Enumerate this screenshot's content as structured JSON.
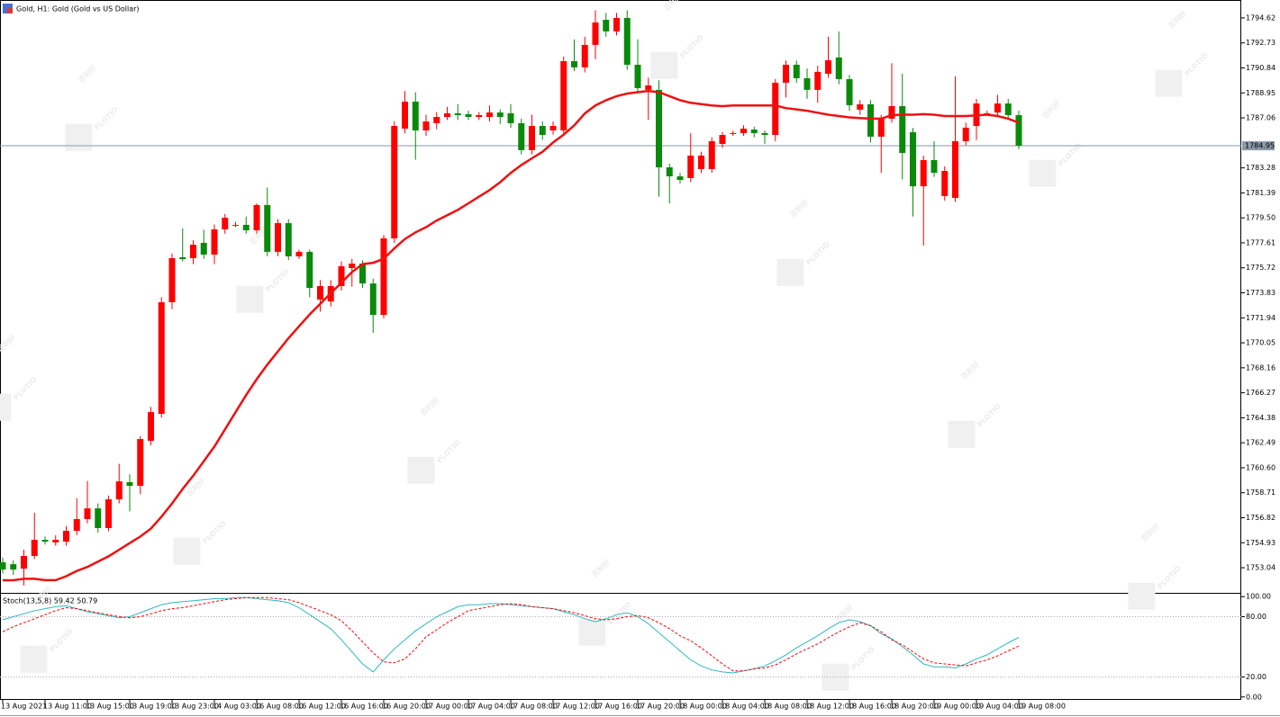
{
  "chart_data": [
    {
      "type": "candlestick",
      "title": "Gold, H1:  Gold (Gold vs US Dollar)",
      "watermark": {
        "brand": "PLOTIO",
        "text": "百利好"
      },
      "categories": [
        "13 Aug 2021",
        null,
        null,
        null,
        "13 Aug 11:00",
        null,
        null,
        null,
        "13 Aug 15:00",
        null,
        null,
        null,
        "13 Aug 19:00",
        null,
        null,
        null,
        "13 Aug 23:00",
        null,
        null,
        null,
        "14 Aug 03:00",
        null,
        null,
        null,
        "16 Aug 08:00",
        null,
        null,
        null,
        "16 Aug 12:00",
        null,
        null,
        null,
        "16 Aug 16:00",
        null,
        null,
        null,
        "16 Aug 20:00",
        null,
        null,
        null,
        "17 Aug 00:00",
        null,
        null,
        null,
        "17 Aug 04:00",
        null,
        null,
        null,
        "17 Aug 08:00",
        null,
        null,
        null,
        "17 Aug 12:00",
        null,
        null,
        null,
        "17 Aug 16:00",
        null,
        null,
        null,
        "17 Aug 20:00",
        null,
        null,
        null,
        "18 Aug 00:00",
        null,
        null,
        null,
        "18 Aug 04:00",
        null,
        null,
        null,
        "18 Aug 08:00",
        null,
        null,
        null,
        "18 Aug 12:00",
        null,
        null,
        null,
        "18 Aug 16:00",
        null,
        null,
        null,
        "18 Aug 20:00",
        null,
        null,
        null,
        "19 Aug 00:00",
        null,
        null,
        null,
        "19 Aug 04:00",
        null,
        null,
        null,
        "19 Aug 08:00"
      ],
      "open": [
        1753.45,
        1753.31,
        1752.97,
        1753.93,
        1755.15,
        1754.95,
        1755.01,
        1755.83,
        1756.72,
        1757.53,
        1756.04,
        1758.21,
        1759.51,
        1759.23,
        1762.64,
        1764.68,
        1773.12,
        1776.52,
        1776.45,
        1777.61,
        1776.72,
        1778.63,
        1778.97,
        1778.97,
        1778.56,
        1780.47,
        1776.93,
        1779.1,
        1776.59,
        1776.93,
        1773.32,
        1773.18,
        1774.34,
        1775.7,
        1776.04,
        1774.54,
        1772.16,
        1777.95,
        1786.25,
        1788.29,
        1786.11,
        1786.66,
        1787.13,
        1787.41,
        1787.34,
        1787.13,
        1787.13,
        1787.47,
        1787.41,
        1786.66,
        1784.62,
        1786.45,
        1786.11,
        1786.11,
        1791.35,
        1790.88,
        1792.58,
        1794.48,
        1793.6,
        1794.62,
        1791.08,
        1789.18,
        1789.18,
        1783.32,
        1782.64,
        1782.51,
        1783.19,
        1783.19,
        1785.09,
        1785.91,
        1785.91,
        1786.18,
        1785.91,
        1785.77,
        1789.72,
        1791.08,
        1790.06,
        1789.18,
        1790.4,
        1791.63,
        1789.99,
        1787.68,
        1788.09,
        1785.64,
        1787.0,
        1787.95,
        1785.98,
        1781.89,
        1783.87,
        1781.15,
        1781.01,
        1785.3,
        1786.45,
        1787.41,
        1787.47,
        1788.15,
        1787.27
      ],
      "high": [
        1753.8,
        1753.6,
        1754.4,
        1757.2,
        1755.4,
        1755.5,
        1756.2,
        1758.3,
        1759.6,
        1757.9,
        1758.5,
        1760.9,
        1760.1,
        1763.0,
        1765.2,
        1773.5,
        1776.8,
        1778.7,
        1777.8,
        1778.6,
        1779.0,
        1779.8,
        1779.2,
        1779.6,
        1780.6,
        1781.8,
        1779.4,
        1779.4,
        1777.1,
        1777.1,
        1774.8,
        1774.8,
        1776.2,
        1776.4,
        1776.3,
        1774.9,
        1778.2,
        1786.8,
        1789.1,
        1789.0,
        1787.3,
        1787.5,
        1787.9,
        1788.1,
        1787.6,
        1787.5,
        1788.0,
        1787.7,
        1788.1,
        1787.0,
        1787.3,
        1786.8,
        1786.8,
        1791.7,
        1793.0,
        1793.2,
        1795.2,
        1795.0,
        1795.0,
        1795.2,
        1793.0,
        1790.1,
        1789.9,
        1783.6,
        1782.9,
        1785.9,
        1784.5,
        1785.6,
        1786.0,
        1786.1,
        1786.5,
        1786.4,
        1786.1,
        1790.0,
        1791.4,
        1791.4,
        1790.8,
        1791.0,
        1793.2,
        1793.6,
        1790.3,
        1788.4,
        1788.4,
        1787.3,
        1791.2,
        1790.4,
        1786.3,
        1784.2,
        1785.3,
        1783.4,
        1790.2,
        1786.7,
        1788.5,
        1787.6,
        1788.8,
        1788.5,
        1787.6
      ],
      "low": [
        1752.6,
        1752.5,
        1751.7,
        1753.7,
        1754.8,
        1754.7,
        1754.7,
        1755.5,
        1756.4,
        1755.7,
        1755.8,
        1757.9,
        1757.3,
        1758.6,
        1762.3,
        1764.4,
        1772.6,
        1776.2,
        1776.0,
        1776.4,
        1776.0,
        1778.3,
        1778.8,
        1778.3,
        1778.3,
        1776.6,
        1776.6,
        1776.3,
        1776.4,
        1773.5,
        1772.4,
        1772.8,
        1774.0,
        1774.3,
        1774.2,
        1770.8,
        1771.9,
        1777.6,
        1785.9,
        1783.9,
        1785.7,
        1786.2,
        1786.9,
        1786.9,
        1786.9,
        1786.9,
        1786.8,
        1786.6,
        1786.3,
        1784.3,
        1784.3,
        1785.4,
        1785.8,
        1785.8,
        1790.6,
        1790.5,
        1791.5,
        1793.2,
        1793.3,
        1790.7,
        1789.0,
        1786.9,
        1781.1,
        1780.6,
        1782.1,
        1782.2,
        1782.9,
        1782.9,
        1784.8,
        1785.7,
        1785.7,
        1785.6,
        1785.1,
        1785.3,
        1788.6,
        1789.7,
        1788.5,
        1788.2,
        1790.1,
        1789.6,
        1787.6,
        1787.3,
        1785.2,
        1782.9,
        1786.7,
        1782.4,
        1779.6,
        1777.4,
        1782.6,
        1780.8,
        1780.7,
        1785.0,
        1785.4,
        1787.2,
        1787.2,
        1787.0,
        1784.7
      ],
      "close": [
        1752.9,
        1752.9,
        1753.93,
        1755.15,
        1755.01,
        1755.15,
        1755.83,
        1756.72,
        1757.53,
        1756.04,
        1758.21,
        1759.57,
        1759.23,
        1762.77,
        1764.81,
        1773.12,
        1776.45,
        1776.38,
        1777.47,
        1776.72,
        1778.63,
        1779.51,
        1778.97,
        1778.56,
        1780.47,
        1776.93,
        1779.1,
        1776.59,
        1776.93,
        1774.2,
        1774.34,
        1774.34,
        1775.84,
        1776.04,
        1774.54,
        1772.16,
        1777.95,
        1786.45,
        1788.29,
        1786.11,
        1786.79,
        1787.13,
        1787.41,
        1787.27,
        1787.13,
        1787.27,
        1787.47,
        1787.13,
        1786.66,
        1784.62,
        1786.45,
        1785.77,
        1786.45,
        1791.35,
        1790.88,
        1792.58,
        1794.28,
        1793.6,
        1794.62,
        1791.08,
        1789.31,
        1789.52,
        1783.32,
        1782.64,
        1782.37,
        1784.21,
        1784.21,
        1785.3,
        1785.77,
        1785.91,
        1786.25,
        1785.91,
        1785.77,
        1789.72,
        1791.08,
        1790.06,
        1789.18,
        1790.54,
        1791.42,
        1789.99,
        1788.02,
        1788.09,
        1785.64,
        1787.0,
        1787.95,
        1784.41,
        1781.89,
        1783.87,
        1782.91,
        1783.05,
        1785.3,
        1786.32,
        1788.15,
        1787.41,
        1788.15,
        1787.27,
        1784.96
      ],
      "up_color": "#ff0000",
      "down_color": "#0a8a0a",
      "moving_average": {
        "color": "#ee1111",
        "values": [
          1752.09,
          1752.09,
          1752.2,
          1752.2,
          1752.1,
          1752.1,
          1752.4,
          1752.8,
          1753.1,
          1753.5,
          1753.9,
          1754.4,
          1754.9,
          1755.4,
          1756.0,
          1756.9,
          1757.9,
          1759.0,
          1760.0,
          1761.1,
          1762.2,
          1763.5,
          1764.8,
          1766.1,
          1767.3,
          1768.4,
          1769.4,
          1770.4,
          1771.3,
          1772.2,
          1773.0,
          1773.8,
          1774.6,
          1775.4,
          1776.0,
          1776.1,
          1776.4,
          1777.2,
          1777.9,
          1778.4,
          1778.8,
          1779.3,
          1779.7,
          1780.1,
          1780.6,
          1781.1,
          1781.6,
          1782.2,
          1782.9,
          1783.5,
          1784.0,
          1784.5,
          1785.2,
          1785.8,
          1786.5,
          1787.4,
          1788.0,
          1788.4,
          1788.7,
          1788.9,
          1789.0,
          1789.1,
          1789.0,
          1788.7,
          1788.4,
          1788.2,
          1788.1,
          1788.0,
          1787.95,
          1788.0,
          1788.0,
          1788.0,
          1788.0,
          1788.0,
          1787.8,
          1787.7,
          1787.6,
          1787.45,
          1787.3,
          1787.2,
          1787.1,
          1787.05,
          1787.0,
          1787.0,
          1787.27,
          1787.3,
          1787.3,
          1787.34,
          1787.3,
          1787.2,
          1787.2,
          1787.2,
          1787.25,
          1787.3,
          1787.2,
          1787.0,
          1786.7
        ]
      },
      "current_price": 1784.95,
      "ylim": [
        1751.14,
        1795.84
      ],
      "yticks": [
        1794.62,
        1792.73,
        1790.84,
        1788.95,
        1787.06,
        1783.28,
        1781.39,
        {
          "value": 1779.5,
          "label": "1779.50"
        },
        1777.61,
        1775.72,
        1773.83,
        1771.94,
        1770.05,
        1768.16,
        1766.27,
        1764.38,
        1762.49,
        {
          "value": 1760.6,
          "label": "1760.60"
        },
        1758.71,
        1756.82,
        1754.93,
        1753.04
      ]
    },
    {
      "type": "line",
      "title": "Stoch(13,5,8) 59.42 50.79",
      "series": [
        {
          "color": "#2fb8c0",
          "values": [
            77,
            80,
            83,
            86,
            88,
            90,
            91,
            88,
            85,
            83,
            81,
            79,
            80,
            84,
            88,
            92,
            94,
            95,
            96,
            97,
            98,
            98,
            99,
            99,
            98,
            97,
            96,
            94,
            89,
            82,
            75,
            68,
            57,
            45,
            33,
            25,
            37,
            48,
            57,
            66,
            73,
            80,
            85,
            90,
            92,
            92,
            93,
            93,
            92,
            91,
            90,
            89,
            88,
            85,
            82,
            78,
            75,
            78,
            82,
            84,
            80,
            73,
            64,
            55,
            46,
            37,
            31,
            27,
            25,
            24,
            26,
            28,
            31,
            36,
            42,
            49,
            55,
            61,
            68,
            74,
            77,
            75,
            71,
            63,
            58,
            50,
            42,
            33,
            30,
            30,
            29,
            33,
            38,
            42,
            48,
            54,
            59.42
          ]
        },
        {
          "color": "#ff0000",
          "dash": true,
          "values": [
            65,
            70,
            74,
            78,
            82,
            86,
            89,
            88,
            86,
            84,
            82,
            80,
            79,
            80,
            83,
            86,
            88,
            89,
            91,
            93,
            95,
            97,
            98,
            99,
            99,
            99,
            98,
            97,
            94,
            90,
            86,
            82,
            76,
            66,
            55,
            44,
            35,
            34,
            38,
            48,
            60,
            67,
            74,
            80,
            86,
            88,
            90,
            92,
            93,
            92,
            90,
            89,
            88,
            86,
            84,
            81,
            78,
            77,
            78,
            80,
            81,
            79,
            74,
            68,
            61,
            56,
            49,
            41,
            33,
            26,
            26,
            28,
            29,
            32,
            37,
            43,
            48,
            53,
            59,
            65,
            70,
            74,
            71,
            65,
            57,
            52,
            45,
            38,
            34,
            33,
            32,
            31,
            34,
            37,
            41,
            46,
            50.79
          ]
        }
      ],
      "ylim": [
        -2,
        102
      ],
      "yticks": [
        {
          "value": 100,
          "label": "100.00"
        },
        {
          "value": 80,
          "label": "80.00"
        },
        {
          "value": 20,
          "label": "20.00"
        },
        {
          "value": 0,
          "label": "0.00"
        }
      ]
    }
  ]
}
